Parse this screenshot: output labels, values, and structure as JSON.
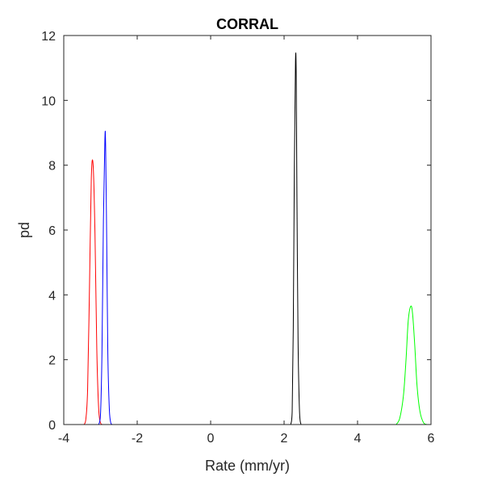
{
  "chart_data": {
    "type": "line",
    "title": "CORRAL",
    "xlabel": "Rate (mm/yr)",
    "ylabel": "pd",
    "xlim": [
      -4,
      6
    ],
    "ylim": [
      0,
      12
    ],
    "xticks": [
      -4,
      -2,
      0,
      2,
      4,
      6
    ],
    "yticks": [
      0,
      2,
      4,
      6,
      8,
      10,
      12
    ],
    "grid": false,
    "legend": "none",
    "series": [
      {
        "color": "#ff0000",
        "x": [
          -3.45,
          -3.4,
          -3.35,
          -3.3,
          -3.25,
          -3.2,
          -3.15,
          -3.1,
          -3.05,
          -3.0,
          -2.95
        ],
        "y": [
          0,
          0.15,
          1.1,
          4.2,
          7.6,
          8.0,
          5.9,
          2.3,
          0.5,
          0.05,
          0
        ]
      },
      {
        "color": "#0000ff",
        "x": [
          -3.05,
          -3.0,
          -2.96,
          -2.92,
          -2.88,
          -2.86,
          -2.83,
          -2.8,
          -2.76,
          -2.72,
          -2.68
        ],
        "y": [
          0,
          0.3,
          2.2,
          6.3,
          8.8,
          8.6,
          5.6,
          2.2,
          0.5,
          0.05,
          0
        ]
      },
      {
        "color": "#000000",
        "x": [
          2.18,
          2.22,
          2.25,
          2.28,
          2.31,
          2.33,
          2.35,
          2.38,
          2.42,
          2.46
        ],
        "y": [
          0,
          0.4,
          3.0,
          8.0,
          11.2,
          10.8,
          7.0,
          2.6,
          0.4,
          0
        ]
      },
      {
        "color": "#00ff00",
        "x": [
          5.05,
          5.15,
          5.25,
          5.32,
          5.38,
          5.45,
          5.5,
          5.56,
          5.62,
          5.7,
          5.8,
          5.9
        ],
        "y": [
          0,
          0.2,
          0.9,
          2.0,
          3.2,
          3.65,
          3.4,
          2.4,
          1.2,
          0.4,
          0.05,
          0
        ]
      }
    ]
  }
}
